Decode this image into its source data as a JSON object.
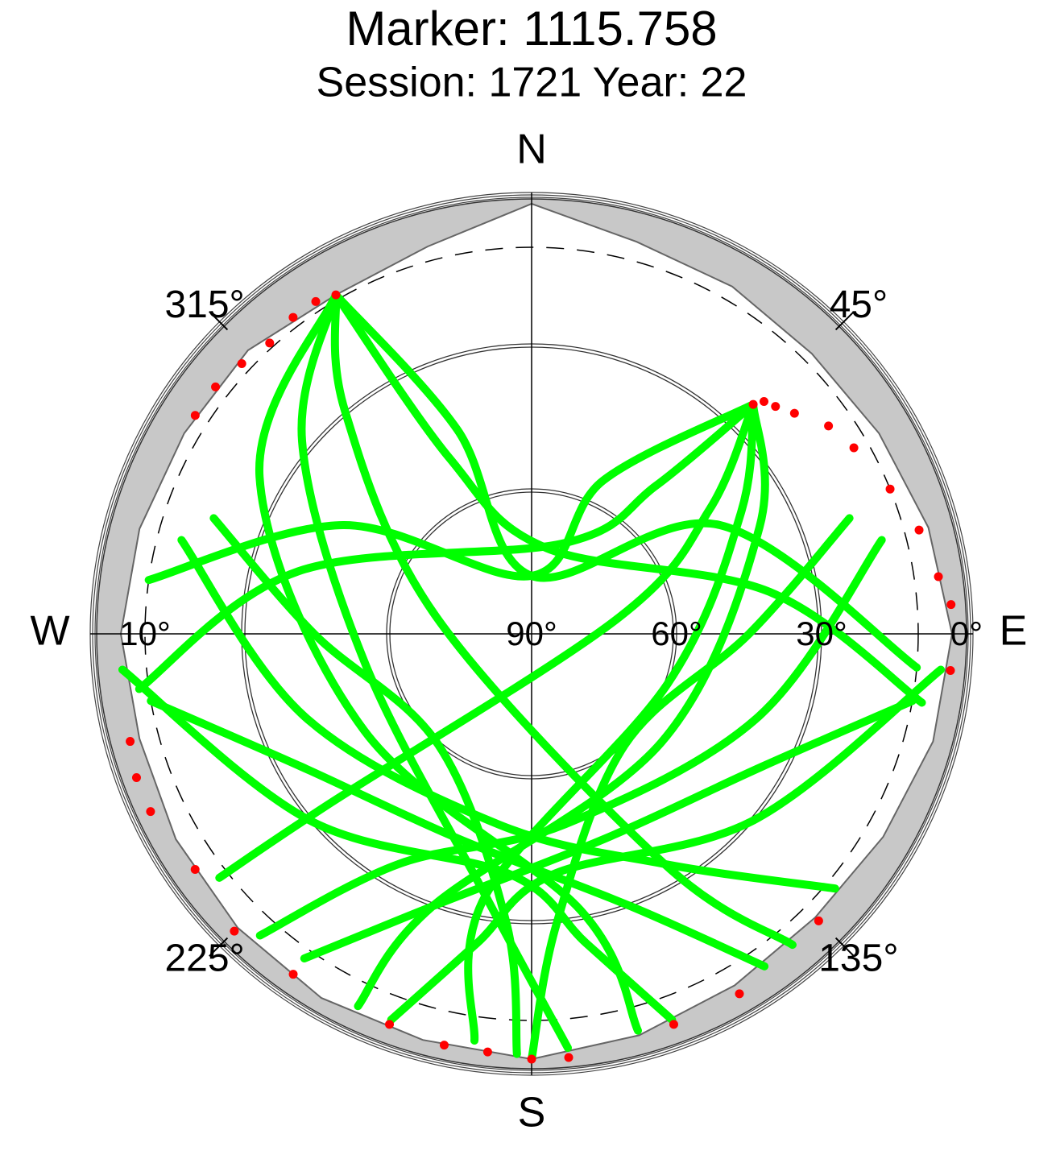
{
  "chart_data": {
    "type": "skyplot",
    "title": "Marker: 1115.758",
    "subtitle": "Session: 1721 Year: 22",
    "directions": [
      {
        "value": 0,
        "label": "N"
      },
      {
        "value": 90,
        "label": "E"
      },
      {
        "value": 180,
        "label": "S"
      },
      {
        "value": 270,
        "label": "W"
      }
    ],
    "azticks": [
      {
        "value": 45,
        "label": "45°"
      },
      {
        "value": 135,
        "label": "135°"
      },
      {
        "value": 225,
        "label": "225°"
      },
      {
        "value": 315,
        "label": "315°"
      }
    ],
    "rlim": [
      90,
      0
    ],
    "rticks": [
      {
        "value": 0,
        "label": "0°"
      },
      {
        "value": 10,
        "label": "10°"
      },
      {
        "value": 30,
        "label": "30°"
      },
      {
        "value": 60,
        "label": "60°"
      },
      {
        "value": 90,
        "label": "90°"
      }
    ],
    "dashed_rtick": 10,
    "horizon_mask": {
      "color": "#c8c8c8",
      "az": [
        0,
        15,
        30,
        45,
        60,
        75,
        90,
        105,
        120,
        135,
        150,
        165,
        180,
        195,
        210,
        225,
        240,
        255,
        270,
        285,
        300,
        315,
        330,
        345
      ],
      "el": [
        1,
        6,
        7,
        8,
        7,
        5,
        3,
        4,
        6,
        7,
        6,
        4,
        2,
        3,
        3,
        4,
        5,
        6,
        5,
        6,
        7,
        7,
        9,
        7
      ]
    },
    "track_color": "#00ff00",
    "tracks": [
      {
        "az": [
          44,
          25,
          0,
          300,
          278
        ],
        "el": [
          24,
          55,
          78,
          45,
          10
        ]
      },
      {
        "az": [
          44,
          40,
          20,
          285,
          262
        ],
        "el": [
          24,
          50,
          70,
          40,
          8
        ]
      },
      {
        "az": [
          44,
          55,
          80,
          230,
          232
        ],
        "el": [
          24,
          45,
          72,
          35,
          8
        ]
      },
      {
        "az": [
          44,
          60,
          110,
          190,
          188
        ],
        "el": [
          24,
          40,
          60,
          35,
          5
        ]
      },
      {
        "az": [
          44,
          65,
          130,
          200,
          205
        ],
        "el": [
          24,
          38,
          55,
          30,
          5
        ]
      },
      {
        "az": [
          330,
          340,
          0,
          60,
          95
        ],
        "el": [
          9,
          45,
          78,
          45,
          10
        ]
      },
      {
        "az": [
          330,
          335,
          10,
          80,
          100
        ],
        "el": [
          9,
          50,
          72,
          40,
          8
        ]
      },
      {
        "az": [
          330,
          320,
          280,
          150,
          140
        ],
        "el": [
          9,
          30,
          70,
          35,
          6
        ]
      },
      {
        "az": [
          330,
          310,
          260,
          190,
          175
        ],
        "el": [
          9,
          28,
          55,
          35,
          4
        ]
      },
      {
        "az": [
          330,
          300,
          240,
          170,
          165
        ],
        "el": [
          9,
          25,
          50,
          32,
          5
        ]
      },
      {
        "az": [
          100,
          120,
          160,
          200,
          215
        ],
        "el": [
          10,
          35,
          45,
          30,
          8
        ]
      },
      {
        "az": [
          260,
          240,
          200,
          160,
          145
        ],
        "el": [
          10,
          35,
          45,
          30,
          6
        ]
      },
      {
        "az": [
          75,
          110,
          170,
          210,
          222
        ],
        "el": [
          15,
          40,
          50,
          35,
          6
        ]
      },
      {
        "az": [
          285,
          250,
          190,
          150,
          130
        ],
        "el": [
          15,
          40,
          50,
          35,
          8
        ]
      },
      {
        "az": [
          95,
          130,
          175,
          190,
          200
        ],
        "el": [
          5,
          30,
          40,
          25,
          5
        ]
      },
      {
        "az": [
          265,
          230,
          185,
          170,
          160
        ],
        "el": [
          5,
          30,
          40,
          25,
          5
        ]
      },
      {
        "az": [
          70,
          90,
          140,
          175,
          180
        ],
        "el": [
          20,
          45,
          60,
          30,
          2
        ]
      },
      {
        "az": [
          290,
          270,
          220,
          185,
          182
        ],
        "el": [
          20,
          45,
          60,
          30,
          3
        ]
      }
    ],
    "low_points": {
      "color": "#ff0000",
      "az": [
        330,
        327,
        323,
        318,
        313,
        308,
        303,
        44,
        45,
        47,
        50,
        55,
        60,
        68,
        75,
        82,
        86,
        95,
        135,
        150,
        160,
        175,
        180,
        186,
        192,
        200,
        215,
        225,
        235,
        245,
        250,
        255
      ],
      "el": [
        9,
        8,
        8,
        9,
        8,
        7,
        7,
        24,
        22,
        21,
        19,
        15,
        13,
        10,
        7,
        5,
        3,
        3,
        6,
        4,
        4,
        2,
        2,
        3,
        3,
        4,
        4,
        3,
        5,
        3,
        3,
        4
      ]
    }
  }
}
